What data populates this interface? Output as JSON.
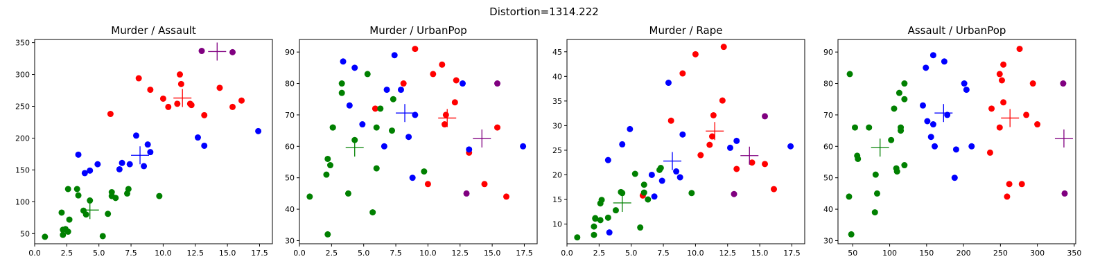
{
  "figure": {
    "suptitle": "Distortion=1314.222"
  },
  "colors": {
    "cluster0": "#ff0000",
    "cluster1": "#008000",
    "cluster2": "#0000ff",
    "cluster3": "#800080"
  },
  "chart_data": [
    {
      "type": "scatter",
      "title": "Murder / Assault",
      "xlim": [
        0,
        18.5
      ],
      "ylim": [
        34,
        355
      ],
      "xticks": [
        0.0,
        2.5,
        5.0,
        7.5,
        10.0,
        12.5,
        15.0,
        17.5
      ],
      "yticks": [
        50,
        100,
        150,
        200,
        250,
        300,
        350
      ],
      "xtick_labels": [
        "0.0",
        "2.5",
        "5.0",
        "7.5",
        "10.0",
        "12.5",
        "15.0",
        "17.5"
      ],
      "ytick_labels": [
        "50",
        "100",
        "150",
        "200",
        "250",
        "300",
        "350"
      ],
      "series": [
        {
          "color": "#ff0000",
          "points": [
            [
              5.9,
              238
            ],
            [
              8.1,
              294
            ],
            [
              9.0,
              276
            ],
            [
              10.0,
              262
            ],
            [
              10.4,
              249
            ],
            [
              11.1,
              254
            ],
            [
              11.3,
              300
            ],
            [
              11.4,
              285
            ],
            [
              12.1,
              254
            ],
            [
              12.2,
              252
            ],
            [
              13.2,
              236
            ],
            [
              14.4,
              279
            ],
            [
              15.4,
              249
            ],
            [
              16.1,
              259
            ]
          ],
          "centroid": [
            11.5,
            263
          ]
        },
        {
          "color": "#008000",
          "points": [
            [
              0.8,
              45
            ],
            [
              2.1,
              83
            ],
            [
              2.2,
              56
            ],
            [
              2.2,
              48
            ],
            [
              2.4,
              57
            ],
            [
              2.6,
              53
            ],
            [
              2.6,
              120
            ],
            [
              2.7,
              72
            ],
            [
              3.3,
              120
            ],
            [
              3.4,
              110
            ],
            [
              3.8,
              86
            ],
            [
              4.0,
              80
            ],
            [
              4.3,
              102
            ],
            [
              5.3,
              46
            ],
            [
              5.7,
              81
            ],
            [
              6.0,
              109
            ],
            [
              6.0,
              115
            ],
            [
              6.3,
              106
            ],
            [
              7.2,
              113
            ],
            [
              7.3,
              120
            ],
            [
              9.7,
              109
            ]
          ],
          "centroid": [
            4.3,
            87
          ]
        },
        {
          "color": "#0000ff",
          "points": [
            [
              3.4,
              174
            ],
            [
              3.9,
              145
            ],
            [
              4.3,
              149
            ],
            [
              4.9,
              159
            ],
            [
              6.6,
              151
            ],
            [
              6.8,
              161
            ],
            [
              7.4,
              159
            ],
            [
              7.9,
              204
            ],
            [
              8.5,
              156
            ],
            [
              8.8,
              190
            ],
            [
              9.0,
              178
            ],
            [
              12.7,
              201
            ],
            [
              13.2,
              188
            ],
            [
              17.4,
              211
            ]
          ],
          "centroid": [
            8.2,
            173
          ]
        },
        {
          "color": "#800080",
          "points": [
            [
              13.0,
              337
            ],
            [
              15.4,
              335
            ]
          ],
          "centroid": [
            14.2,
            336
          ]
        }
      ]
    },
    {
      "type": "scatter",
      "title": "Murder / UrbanPop",
      "xlim": [
        0,
        18.5
      ],
      "ylim": [
        29,
        94
      ],
      "xticks": [
        0.0,
        2.5,
        5.0,
        7.5,
        10.0,
        12.5,
        15.0,
        17.5
      ],
      "yticks": [
        30,
        40,
        50,
        60,
        70,
        80,
        90
      ],
      "xtick_labels": [
        "0.0",
        "2.5",
        "5.0",
        "7.5",
        "10.0",
        "12.5",
        "15.0",
        "17.5"
      ],
      "ytick_labels": [
        "30",
        "40",
        "50",
        "60",
        "70",
        "80",
        "90"
      ],
      "series": [
        {
          "color": "#ff0000",
          "points": [
            [
              5.9,
              72
            ],
            [
              8.1,
              80
            ],
            [
              9.0,
              91
            ],
            [
              10.0,
              48
            ],
            [
              10.4,
              83
            ],
            [
              11.1,
              86
            ],
            [
              11.3,
              67
            ],
            [
              11.4,
              70
            ],
            [
              12.1,
              74
            ],
            [
              12.2,
              81
            ],
            [
              13.2,
              58
            ],
            [
              14.4,
              48
            ],
            [
              15.4,
              66
            ],
            [
              16.1,
              44
            ]
          ],
          "centroid": [
            11.5,
            69
          ]
        },
        {
          "color": "#008000",
          "points": [
            [
              0.8,
              44
            ],
            [
              2.1,
              51
            ],
            [
              2.2,
              56
            ],
            [
              2.2,
              32
            ],
            [
              2.4,
              54
            ],
            [
              2.6,
              66
            ],
            [
              2.6,
              66
            ],
            [
              3.3,
              80
            ],
            [
              3.3,
              77
            ],
            [
              3.8,
              45
            ],
            [
              4.3,
              62
            ],
            [
              5.3,
              83
            ],
            [
              5.7,
              39
            ],
            [
              6.0,
              53
            ],
            [
              6.0,
              66
            ],
            [
              6.3,
              72
            ],
            [
              7.2,
              65
            ],
            [
              7.3,
              75
            ],
            [
              9.7,
              52
            ]
          ],
          "centroid": [
            4.3,
            59.6
          ]
        },
        {
          "color": "#0000ff",
          "points": [
            [
              3.4,
              87
            ],
            [
              3.9,
              73
            ],
            [
              4.3,
              85
            ],
            [
              4.9,
              67
            ],
            [
              6.6,
              60
            ],
            [
              6.8,
              78
            ],
            [
              7.4,
              89
            ],
            [
              7.9,
              78
            ],
            [
              8.5,
              63
            ],
            [
              8.8,
              50
            ],
            [
              9.0,
              70
            ],
            [
              12.7,
              80
            ],
            [
              13.2,
              59
            ],
            [
              17.4,
              60
            ]
          ],
          "centroid": [
            8.2,
            70.6
          ]
        },
        {
          "color": "#800080",
          "points": [
            [
              13.0,
              45
            ],
            [
              15.4,
              80
            ]
          ],
          "centroid": [
            14.2,
            62.5
          ]
        }
      ]
    },
    {
      "type": "scatter",
      "title": "Murder / Rape",
      "xlim": [
        0,
        18.5
      ],
      "ylim": [
        6,
        47.5
      ],
      "xticks": [
        0.0,
        2.5,
        5.0,
        7.5,
        10.0,
        12.5,
        15.0,
        17.5
      ],
      "yticks": [
        10,
        15,
        20,
        25,
        30,
        35,
        40,
        45
      ],
      "xtick_labels": [
        "0.0",
        "2.5",
        "5.0",
        "7.5",
        "10.0",
        "12.5",
        "15.0",
        "17.5"
      ],
      "ytick_labels": [
        "10",
        "15",
        "20",
        "25",
        "30",
        "35",
        "40",
        "45"
      ],
      "series": [
        {
          "color": "#ff0000",
          "points": [
            [
              5.9,
              15.8
            ],
            [
              8.1,
              31
            ],
            [
              9.0,
              40.6
            ],
            [
              10.0,
              44.5
            ],
            [
              10.4,
              24
            ],
            [
              11.1,
              26.1
            ],
            [
              11.3,
              27.8
            ],
            [
              11.4,
              32.1
            ],
            [
              12.1,
              35.1
            ],
            [
              12.2,
              46
            ],
            [
              13.2,
              21.2
            ],
            [
              14.4,
              22.5
            ],
            [
              15.4,
              22.2
            ],
            [
              16.1,
              17.1
            ]
          ],
          "centroid": [
            11.5,
            28.9
          ]
        },
        {
          "color": "#008000",
          "points": [
            [
              0.8,
              7.3
            ],
            [
              2.1,
              7.8
            ],
            [
              2.1,
              9.5
            ],
            [
              2.2,
              11.2
            ],
            [
              2.2,
              11.1
            ],
            [
              2.6,
              10.8
            ],
            [
              2.6,
              14.2
            ],
            [
              2.7,
              14.9
            ],
            [
              3.2,
              11.3
            ],
            [
              3.8,
              12.8
            ],
            [
              4.2,
              16.5
            ],
            [
              4.3,
              16.3
            ],
            [
              5.3,
              20.2
            ],
            [
              5.7,
              9.3
            ],
            [
              6.0,
              16.4
            ],
            [
              6.0,
              18.0
            ],
            [
              6.3,
              15.0
            ],
            [
              7.2,
              21.0
            ],
            [
              7.3,
              21.4
            ],
            [
              9.7,
              16.3
            ]
          ],
          "centroid": [
            4.3,
            14.3
          ]
        },
        {
          "color": "#0000ff",
          "points": [
            [
              3.2,
              23.0
            ],
            [
              3.3,
              8.3
            ],
            [
              4.3,
              26.2
            ],
            [
              4.9,
              29.3
            ],
            [
              6.6,
              20.0
            ],
            [
              6.8,
              15.6
            ],
            [
              7.4,
              18.8
            ],
            [
              7.9,
              38.7
            ],
            [
              8.5,
              20.7
            ],
            [
              8.8,
              19.5
            ],
            [
              9.0,
              28.2
            ],
            [
              12.7,
              25.5
            ],
            [
              13.2,
              26.9
            ],
            [
              17.4,
              25.8
            ]
          ],
          "centroid": [
            8.2,
            22.8
          ]
        },
        {
          "color": "#800080",
          "points": [
            [
              13.0,
              16.1
            ],
            [
              15.4,
              31.9
            ]
          ],
          "centroid": [
            14.2,
            23.9
          ]
        }
      ]
    },
    {
      "type": "scatter",
      "title": "Assault / UrbanPop",
      "xlim": [
        30,
        352
      ],
      "ylim": [
        29,
        94
      ],
      "xticks": [
        50,
        100,
        150,
        200,
        250,
        300,
        350
      ],
      "yticks": [
        30,
        40,
        50,
        60,
        70,
        80,
        90
      ],
      "xtick_labels": [
        "50",
        "100",
        "150",
        "200",
        "250",
        "300",
        "350"
      ],
      "ytick_labels": [
        "30",
        "40",
        "50",
        "60",
        "70",
        "80",
        "90"
      ],
      "series": [
        {
          "color": "#ff0000",
          "points": [
            [
              236,
              58
            ],
            [
              238,
              72
            ],
            [
              249,
              66
            ],
            [
              249,
              83
            ],
            [
              252,
              81
            ],
            [
              254,
              86
            ],
            [
              254,
              74
            ],
            [
              259,
              44
            ],
            [
              262,
              48
            ],
            [
              276,
              91
            ],
            [
              279,
              48
            ],
            [
              285,
              70
            ],
            [
              294,
              80
            ],
            [
              300,
              67
            ]
          ],
          "centroid": [
            263,
            69
          ]
        },
        {
          "color": "#008000",
          "points": [
            [
              45,
              44
            ],
            [
              46,
              83
            ],
            [
              48,
              32
            ],
            [
              53,
              66
            ],
            [
              56,
              57
            ],
            [
              57,
              56
            ],
            [
              72,
              66
            ],
            [
              80,
              39
            ],
            [
              81,
              51
            ],
            [
              83,
              45
            ],
            [
              102,
              62
            ],
            [
              106,
              72
            ],
            [
              109,
              53
            ],
            [
              110,
              52
            ],
            [
              113,
              77
            ],
            [
              115,
              65
            ],
            [
              115,
              66
            ],
            [
              120,
              54
            ],
            [
              120,
              80
            ],
            [
              120,
              75
            ]
          ],
          "centroid": [
            87,
            59.6
          ]
        },
        {
          "color": "#0000ff",
          "points": [
            [
              145,
              73
            ],
            [
              149,
              85
            ],
            [
              151,
              68
            ],
            [
              156,
              63
            ],
            [
              159,
              89
            ],
            [
              159,
              67
            ],
            [
              161,
              60
            ],
            [
              174,
              87
            ],
            [
              178,
              70
            ],
            [
              188,
              50
            ],
            [
              190,
              59
            ],
            [
              201,
              80
            ],
            [
              204,
              78
            ],
            [
              211,
              60
            ]
          ],
          "centroid": [
            173,
            70.6
          ]
        },
        {
          "color": "#800080",
          "points": [
            [
              335,
              80
            ],
            [
              337,
              45
            ]
          ],
          "centroid": [
            336,
            62.5
          ]
        }
      ]
    }
  ]
}
